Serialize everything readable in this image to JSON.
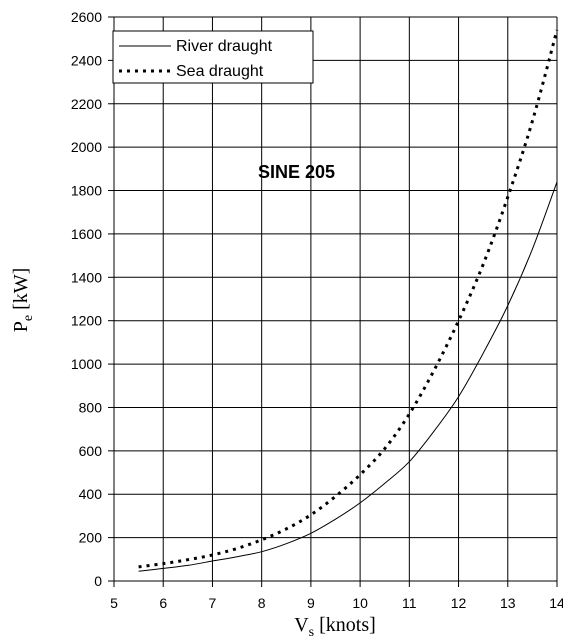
{
  "chart_data": {
    "type": "line",
    "title": "",
    "annotation": "SINE 205",
    "xlabel": {
      "main": "V",
      "sub": "s",
      "unit": " [knots]"
    },
    "ylabel": {
      "main": "P",
      "sub": "e",
      "unit": " [kW]"
    },
    "xlim": [
      5,
      14
    ],
    "ylim": [
      0,
      2600
    ],
    "xticks": [
      5,
      6,
      7,
      8,
      9,
      10,
      11,
      12,
      13,
      14
    ],
    "yticks": [
      0,
      200,
      400,
      600,
      800,
      1000,
      1200,
      1400,
      1600,
      1800,
      2000,
      2200,
      2400,
      2600
    ],
    "grid": true,
    "legend_position": "top-left",
    "series": [
      {
        "name": "River draught",
        "style": "solid",
        "x": [
          5.5,
          6,
          6.5,
          7,
          7.5,
          8,
          8.5,
          9,
          9.5,
          10,
          10.5,
          11,
          11.5,
          12,
          12.5,
          13,
          13.5,
          14
        ],
        "y": [
          45,
          58,
          72,
          92,
          112,
          135,
          172,
          220,
          285,
          360,
          450,
          550,
          690,
          850,
          1050,
          1270,
          1530,
          1840
        ]
      },
      {
        "name": "Sea draught",
        "style": "dotted",
        "x": [
          5.5,
          6,
          6.5,
          7,
          7.5,
          8,
          8.5,
          9,
          9.5,
          10,
          10.5,
          11,
          11.5,
          12,
          12.5,
          13,
          13.5,
          14
        ],
        "y": [
          65,
          80,
          98,
          120,
          150,
          190,
          240,
          305,
          390,
          490,
          610,
          770,
          970,
          1200,
          1460,
          1770,
          2120,
          2540
        ]
      }
    ]
  }
}
